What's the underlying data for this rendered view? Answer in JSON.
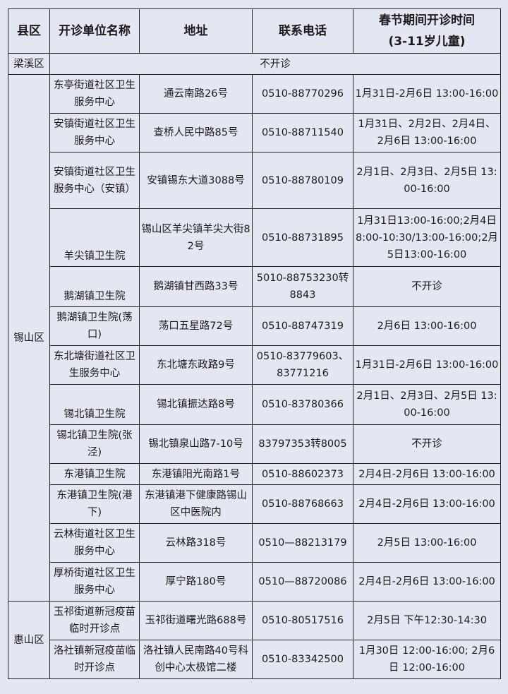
{
  "headers": [
    "县区",
    "开诊单位名称",
    "地址",
    "联系电话",
    "春节期间开诊时间",
    "(3-11岁儿童)"
  ],
  "liangxi": {
    "district": "梁溪区",
    "note": "不开诊"
  },
  "districts": [
    {
      "name": "锡山区",
      "rows": [
        {
          "unit": "东亭街道社区卫生服务中心",
          "address": "通云南路26号",
          "phone": "0510-88770296",
          "time": "1月31日-2月6日 13:00-16:00",
          "h": "r2"
        },
        {
          "unit": "安镇街道社区卫生服务中心",
          "address": "查桥人民中路85号",
          "phone": "0510-88711540",
          "time": "1月31日、2月2日、2月4日、2月6日  13:00-16:00",
          "h": "r2"
        },
        {
          "unit": "安镇街道社区卫生服务中心（安镇）",
          "address": "安镇锡东大道3088号",
          "phone": "0510-88780109",
          "time": "2月1日、2月3日、2月5日 13:00-16:00",
          "h": "r3"
        },
        {
          "unit": "羊尖镇卫生院",
          "address": "锡山区羊尖镇羊尖大街82号",
          "phone": "0510-88731895",
          "time": "1月31日13:00-16:00;2月4日8:00-10:30/13:00-16:00;2月5日13:00-16:00",
          "h": "r3",
          "bottom": true
        },
        {
          "unit": "鹅湖镇卫生院",
          "address": "鹅湖镇甘西路33号",
          "phone": "5010-88753230转8843",
          "time": "不开诊",
          "h": "r2",
          "bottom": true
        },
        {
          "unit": "鹅湖镇卫生院(荡口)",
          "address": "荡口五星路72号",
          "phone": "0510-88747319",
          "time": "2月6日 13:00-16:00",
          "h": "r2"
        },
        {
          "unit": "东北塘街道社区卫生服务中心",
          "address": "东北塘东政路9号",
          "phone": "0510-83779603、83771216",
          "time": "1月31日-2月6日 13:00-16:00",
          "h": "r2"
        },
        {
          "unit": "锡北镇卫生院",
          "address": "锡北镇振达路8号",
          "phone": "0510-83780366",
          "time": "2月1日、2月3日、2月5日 13:00-16:00",
          "h": "r2",
          "bottom": true
        },
        {
          "unit": "锡北镇卫生院(张泾)",
          "address": "锡北镇泉山路7-10号",
          "phone": "83797353转8005",
          "time": "不开诊",
          "h": "r2"
        },
        {
          "unit": "东港镇卫生院",
          "address": "东港镇阳光南路1号",
          "phone": "0510-88602373",
          "time": "2月4日-2月6日 13:00-16:00",
          "h": "r1"
        },
        {
          "unit": "东港镇卫生院(港下)",
          "address": "东港镇港下健康路锡山区中医院内",
          "phone": "0510-88768663",
          "time": "2月4日-2月6日 13:00-16:00",
          "h": "r2"
        },
        {
          "unit": "云林街道社区卫生服务中心",
          "address": "云林路318号",
          "phone": "0510—88213179",
          "time": "2月5日 13:00-16:00",
          "h": "r2"
        },
        {
          "unit": "厚桥街道社区卫生服务中心",
          "address": "厚宁路180号",
          "phone": "0510—88720086",
          "time": "2月4日-2月6日 13:00-16:00",
          "h": "r2"
        }
      ]
    },
    {
      "name": "惠山区",
      "rows": [
        {
          "unit": "玉祁街道新冠疫苗临时开诊点",
          "address": "玉祁街道曙光路688号",
          "phone": "0510-80517516",
          "time": "2月5日 下午12:30-14:30",
          "h": "r2"
        },
        {
          "unit": "洛社镇新冠疫苗临时开诊点",
          "address": "洛社镇人民南路40号科创中心太极馆二楼",
          "phone": "0510-83342500",
          "time": "1月30日 12:00-16:00; 2月6日 12:00-16:00",
          "h": "r2"
        }
      ]
    }
  ]
}
